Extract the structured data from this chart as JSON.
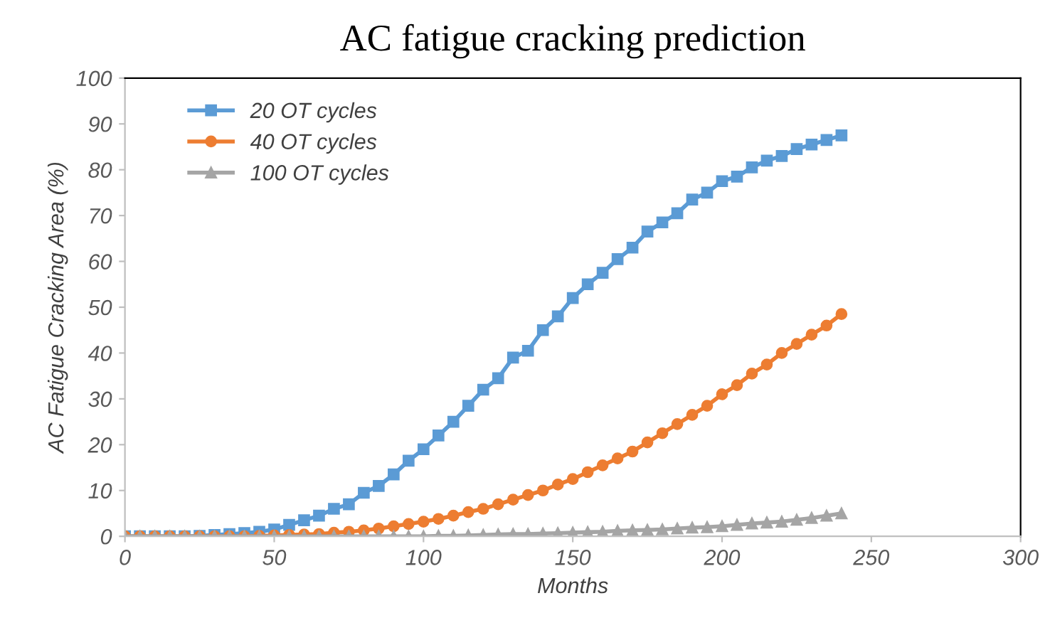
{
  "chart_data": {
    "type": "line",
    "title": "AC fatigue cracking prediction",
    "xlabel": "Months",
    "ylabel": "AC Fatigue Cracking Area (%)",
    "x": [
      0,
      5,
      10,
      15,
      20,
      25,
      30,
      35,
      40,
      45,
      50,
      55,
      60,
      65,
      70,
      75,
      80,
      85,
      90,
      95,
      100,
      105,
      110,
      115,
      120,
      125,
      130,
      135,
      140,
      145,
      150,
      155,
      160,
      165,
      170,
      175,
      180,
      185,
      190,
      195,
      200,
      205,
      210,
      215,
      220,
      225,
      230,
      235,
      240
    ],
    "series": [
      {
        "name": "20 OT cycles",
        "color": "#5b9bd5",
        "marker": "square",
        "values": [
          0,
          0,
          0,
          0,
          0,
          0.1,
          0.3,
          0.5,
          0.7,
          1,
          1.5,
          2.5,
          3.5,
          4.5,
          6,
          7,
          9.5,
          11,
          13.5,
          16.5,
          19,
          22,
          25,
          28.5,
          32,
          34.5,
          39,
          40.5,
          45,
          48,
          52,
          55,
          57.5,
          60.5,
          63,
          66.5,
          68.5,
          70.5,
          73.5,
          75,
          77.5,
          78.5,
          80.5,
          82,
          83,
          84.5,
          85.5,
          86.5,
          87.5
        ]
      },
      {
        "name": "40 OT cycles",
        "color": "#ed7d31",
        "marker": "circle",
        "values": [
          0,
          0,
          0,
          0,
          0,
          0,
          0,
          0,
          0,
          0.1,
          0.2,
          0.3,
          0.4,
          0.5,
          0.8,
          1,
          1.3,
          1.7,
          2.2,
          2.7,
          3.2,
          3.8,
          4.5,
          5.3,
          6,
          7,
          8,
          9,
          10,
          11.3,
          12.5,
          14,
          15.5,
          17,
          18.5,
          20.5,
          22.5,
          24.5,
          26.5,
          28.5,
          31,
          33,
          35.5,
          37.5,
          40,
          42,
          44,
          46,
          48.5
        ]
      },
      {
        "name": "100 OT cycles",
        "color": "#a5a5a5",
        "marker": "triangle",
        "values": [
          0,
          0,
          0,
          0,
          0,
          0,
          0,
          0,
          0,
          0,
          0,
          0,
          0,
          0,
          0,
          0,
          0,
          0,
          0,
          0,
          0,
          0.1,
          0.1,
          0.2,
          0.3,
          0.4,
          0.5,
          0.5,
          0.6,
          0.7,
          0.8,
          0.9,
          1,
          1.2,
          1.3,
          1.4,
          1.5,
          1.7,
          1.9,
          2,
          2.2,
          2.5,
          2.8,
          3,
          3.2,
          3.6,
          4,
          4.5,
          5
        ]
      }
    ],
    "xlim": [
      0,
      300
    ],
    "xticks": [
      0,
      50,
      100,
      150,
      200,
      250,
      300
    ],
    "ylim": [
      0,
      100
    ],
    "yticks": [
      0,
      10,
      20,
      30,
      40,
      50,
      60,
      70,
      80,
      90,
      100
    ],
    "grid": false,
    "legend": "top left",
    "line_style": "solid"
  }
}
